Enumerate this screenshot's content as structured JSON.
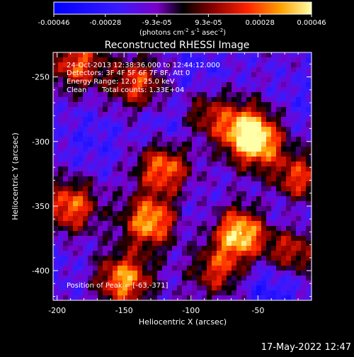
{
  "chart_data": {
    "type": "heatmap",
    "title": "Reconstructed RHESSI Image",
    "xlabel": "Heliocentric X (arcsec)",
    "ylabel": "Heliocentric Y (arcsec)",
    "xlim": [
      -203,
      -10
    ],
    "ylim": [
      -423,
      -231
    ],
    "x_ticks": [
      "-200",
      "-150",
      "-100",
      "-50"
    ],
    "y_ticks": [
      "-250",
      "-300",
      "-350",
      "-400"
    ],
    "x_tick_values": [
      -200,
      -150,
      -100,
      -50
    ],
    "y_tick_values": [
      -250,
      -300,
      -350,
      -400
    ],
    "colorbar": {
      "min": -0.00046,
      "max": 0.00046,
      "tick_labels": [
        "-0.00046",
        "-0.00028",
        "-9.3e-05",
        "9.3e-05",
        "0.00028",
        "0.00046"
      ],
      "label_main": "(photons cm",
      "label_exp1": "-2",
      "label_mid": " s",
      "label_exp2": "-1",
      "label_end": " asec",
      "label_exp3": "-2",
      "label_close": ")"
    },
    "annotations": {
      "time_range": "24-Oct-2013 12:38:36.000 to 12:44:12.000",
      "detectors": "Detectors: 3F 4F 5F 6F 7F 8F, Att 0",
      "energy_range": "Energy Range: 12.0 - 25.0 keV",
      "method": "Clean",
      "total_counts": "Total counts: 1.33E+04",
      "peak": "Position of Peak = [-63,-371]"
    },
    "peak_position": [
      -63,
      -371
    ],
    "bright_sources": [
      {
        "x": -63,
        "y": -371,
        "intensity": 0.00046
      },
      {
        "x": -130,
        "y": -362,
        "intensity": 0.0004
      },
      {
        "x": -120,
        "y": -320,
        "intensity": 0.00034
      },
      {
        "x": -150,
        "y": -407,
        "intensity": 0.00036
      },
      {
        "x": -190,
        "y": -350,
        "intensity": 0.0003
      },
      {
        "x": -185,
        "y": -240,
        "intensity": 0.00026
      },
      {
        "x": -140,
        "y": -255,
        "intensity": 0.00024
      },
      {
        "x": -50,
        "y": -302,
        "intensity": 0.0003
      },
      {
        "x": -60,
        "y": -290,
        "intensity": 0.00028
      },
      {
        "x": -20,
        "y": -330,
        "intensity": 0.00026
      },
      {
        "x": -25,
        "y": -385,
        "intensity": 0.00024
      },
      {
        "x": -90,
        "y": -280,
        "intensity": 0.00018
      },
      {
        "x": -80,
        "y": -400,
        "intensity": 0.0002
      }
    ],
    "dim_sources": [
      {
        "x": -110,
        "y": -290,
        "intensity": -0.0003
      },
      {
        "x": -30,
        "y": -355,
        "intensity": -0.00028
      },
      {
        "x": -40,
        "y": -410,
        "intensity": -0.00032
      },
      {
        "x": -95,
        "y": -245,
        "intensity": -0.00024
      },
      {
        "x": -175,
        "y": -300,
        "intensity": -0.00024
      },
      {
        "x": -100,
        "y": -360,
        "intensity": -0.00022
      },
      {
        "x": -15,
        "y": -270,
        "intensity": -0.00022
      },
      {
        "x": -200,
        "y": -400,
        "intensity": -0.0002
      }
    ]
  },
  "footer": {
    "timestamp": "17-May-2022 12:47"
  }
}
